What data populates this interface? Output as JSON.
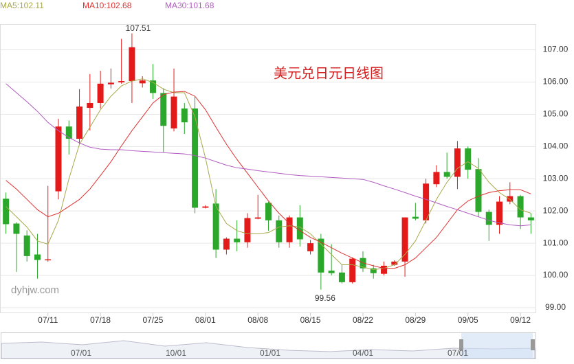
{
  "chart_data": {
    "type": "candlestick",
    "title": "美元兑日元日线图",
    "watermark": "dyhjw.com",
    "categories": [
      null,
      null,
      null,
      null,
      "07/11",
      null,
      null,
      null,
      null,
      "07/18",
      null,
      null,
      null,
      null,
      "07/25",
      null,
      null,
      null,
      null,
      "08/01",
      null,
      null,
      null,
      null,
      "08/08",
      null,
      null,
      null,
      null,
      "08/15",
      null,
      null,
      null,
      null,
      "08/22",
      null,
      null,
      null,
      null,
      "08/29",
      null,
      null,
      null,
      null,
      "09/05",
      null,
      null,
      null,
      null,
      "09/12",
      null
    ],
    "open": [
      102.38,
      101.61,
      101.24,
      100.65,
      100.47,
      102.61,
      104.62,
      104.24,
      105.2,
      105.35,
      105.93,
      105.99,
      106.03,
      105.96,
      106.05,
      105.66,
      104.56,
      105.18,
      105.18,
      102.1,
      102.23,
      100.8,
      101.14,
      101.03,
      101.76,
      102.25,
      101.71,
      101.03,
      101.8,
      100.75,
      101.14,
      100.15,
      100.09,
      99.79,
      100.54,
      100.22,
      100.05,
      100.33,
      100.43,
      101.82,
      101.71,
      102.83,
      103.21,
      103.06,
      103.94,
      103.3,
      101.97,
      101.57,
      102.29,
      102.46,
      101.8
    ],
    "high": [
      102.57,
      101.65,
      101.4,
      101.29,
      102.78,
      104.86,
      104.81,
      105.78,
      106.25,
      106.35,
      106.42,
      107.34,
      107.51,
      106.18,
      106.56,
      105.81,
      106.42,
      105.35,
      105.56,
      102.18,
      102.68,
      101.18,
      101.71,
      101.93,
      102.5,
      102.29,
      101.86,
      101.86,
      102.18,
      101.1,
      101.29,
      100.97,
      100.33,
      100.56,
      100.75,
      100.33,
      100.43,
      100.47,
      101.8,
      102.25,
      103.0,
      103.42,
      103.81,
      104.17,
      104.0,
      103.64,
      102.04,
      102.46,
      102.89,
      102.5,
      101.93
    ],
    "low": [
      101.29,
      100.11,
      100.43,
      99.9,
      100.43,
      102.36,
      103.75,
      104.07,
      104.5,
      105.18,
      105.8,
      105.95,
      105.35,
      105.83,
      105.48,
      103.83,
      104.47,
      104.39,
      101.93,
      102.08,
      100.54,
      100.65,
      100.75,
      100.86,
      101.74,
      101.39,
      100.86,
      100.86,
      100.9,
      100.65,
      99.56,
      100.0,
      99.75,
      99.75,
      100.11,
      99.9,
      100.0,
      100.3,
      99.96,
      101.71,
      101.61,
      102.74,
      103.0,
      102.68,
      103.0,
      101.82,
      101.07,
      101.29,
      102.21,
      101.44,
      101.29
    ],
    "close": [
      101.59,
      101.29,
      100.6,
      100.48,
      100.5,
      104.62,
      104.24,
      105.24,
      105.35,
      105.95,
      105.98,
      106.03,
      107.08,
      106.05,
      105.66,
      104.64,
      105.55,
      104.75,
      102.1,
      102.14,
      100.8,
      101.14,
      101.03,
      101.78,
      101.8,
      101.71,
      101.03,
      101.8,
      101.12,
      101.0,
      100.09,
      100.07,
      99.79,
      100.52,
      100.22,
      100.07,
      100.3,
      100.43,
      101.8,
      101.76,
      102.85,
      103.21,
      103.06,
      103.94,
      103.28,
      101.97,
      101.57,
      102.29,
      102.46,
      101.8,
      101.71
    ],
    "up_color": "#e41a1a",
    "down_color": "#2ba82b",
    "series": [
      {
        "name": "MA5:102.11",
        "color": "#a8a84a",
        "values": [
          102.14,
          101.82,
          101.5,
          101.07,
          100.97,
          101.71,
          103.0,
          104.07,
          104.6,
          105.14,
          105.56,
          105.88,
          106.03,
          106.1,
          105.99,
          105.78,
          105.67,
          105.67,
          104.92,
          103.64,
          102.14,
          101.61,
          101.39,
          101.29,
          101.29,
          101.33,
          101.5,
          101.54,
          101.5,
          101.29,
          100.97,
          100.65,
          100.33,
          100.33,
          100.26,
          100.18,
          100.22,
          100.33,
          100.65,
          101.07,
          101.71,
          102.36,
          102.89,
          103.32,
          103.53,
          103.32,
          102.89,
          102.57,
          102.36,
          102.04,
          101.93
        ]
      },
      {
        "name": "MA10:102.68",
        "color": "#e03030",
        "values": [
          102.95,
          102.68,
          102.36,
          102.04,
          101.82,
          101.93,
          102.14,
          102.36,
          102.68,
          103.1,
          103.53,
          104.02,
          104.49,
          104.92,
          105.35,
          105.61,
          105.69,
          105.71,
          105.56,
          105.14,
          104.6,
          104.07,
          103.6,
          103.17,
          102.74,
          102.31,
          101.93,
          101.61,
          101.39,
          101.18,
          101.03,
          100.86,
          100.69,
          100.54,
          100.39,
          100.3,
          100.22,
          100.22,
          100.33,
          100.54,
          100.86,
          101.18,
          101.61,
          102.04,
          102.31,
          102.46,
          102.57,
          102.63,
          102.66,
          102.66,
          102.53
        ]
      },
      {
        "name": "MA30:101.68",
        "color": "#b05cc0",
        "values": [
          105.95,
          105.67,
          105.39,
          105.09,
          104.75,
          104.49,
          104.28,
          104.11,
          103.98,
          103.92,
          103.9,
          103.9,
          103.87,
          103.85,
          103.83,
          103.81,
          103.79,
          103.77,
          103.72,
          103.64,
          103.53,
          103.42,
          103.34,
          103.3,
          103.25,
          103.21,
          103.17,
          103.13,
          103.1,
          103.08,
          103.06,
          103.04,
          103.02,
          103.0,
          102.98,
          102.89,
          102.78,
          102.68,
          102.57,
          102.46,
          102.36,
          102.25,
          102.14,
          102.04,
          101.93,
          101.82,
          101.71,
          101.63,
          101.57,
          101.54,
          101.57
        ]
      }
    ],
    "ylim": [
      98.85,
      107.8
    ],
    "yticks": [
      {
        "value": 99,
        "label": "99.00"
      },
      {
        "value": 100,
        "label": "100.00"
      },
      {
        "value": 101,
        "label": "101.00"
      },
      {
        "value": 102,
        "label": "102.00"
      },
      {
        "value": 103,
        "label": "103.00"
      },
      {
        "value": 104,
        "label": "104.00"
      },
      {
        "value": 105,
        "label": "105.00"
      },
      {
        "value": 106,
        "label": "106.00"
      },
      {
        "value": 107,
        "label": "107.00"
      }
    ],
    "grid": true,
    "max_index": 12,
    "min_index": 30,
    "navigator_labels": [
      "07/01",
      "10/01",
      "01/01",
      "04/01",
      "07/01"
    ]
  }
}
